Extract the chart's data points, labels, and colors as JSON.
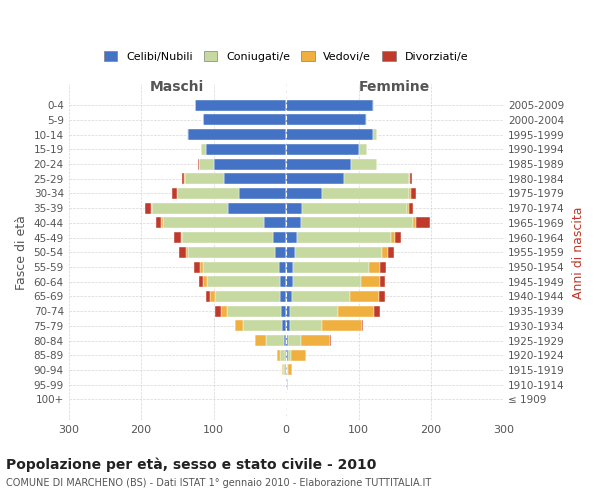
{
  "age_groups": [
    "100+",
    "95-99",
    "90-94",
    "85-89",
    "80-84",
    "75-79",
    "70-74",
    "65-69",
    "60-64",
    "55-59",
    "50-54",
    "45-49",
    "40-44",
    "35-39",
    "30-34",
    "25-29",
    "20-24",
    "15-19",
    "10-14",
    "5-9",
    "0-4"
  ],
  "birth_years": [
    "≤ 1909",
    "1910-1914",
    "1915-1919",
    "1920-1924",
    "1925-1929",
    "1930-1934",
    "1935-1939",
    "1940-1944",
    "1945-1949",
    "1950-1954",
    "1955-1959",
    "1960-1964",
    "1965-1969",
    "1970-1974",
    "1975-1979",
    "1980-1984",
    "1985-1989",
    "1990-1994",
    "1995-1999",
    "2000-2004",
    "2005-2009"
  ],
  "male": {
    "celibi": [
      0,
      0,
      1,
      1,
      3,
      5,
      7,
      8,
      9,
      10,
      15,
      18,
      30,
      80,
      65,
      85,
      100,
      110,
      135,
      115,
      125
    ],
    "coniugati": [
      0,
      0,
      3,
      8,
      25,
      55,
      75,
      90,
      100,
      105,
      120,
      125,
      140,
      105,
      85,
      55,
      20,
      8,
      2,
      0,
      0
    ],
    "vedovi": [
      0,
      0,
      1,
      4,
      15,
      10,
      8,
      7,
      5,
      4,
      3,
      2,
      2,
      2,
      1,
      1,
      0,
      0,
      0,
      0,
      0
    ],
    "divorziati": [
      0,
      0,
      0,
      0,
      0,
      1,
      8,
      5,
      6,
      8,
      10,
      9,
      8,
      8,
      6,
      2,
      1,
      0,
      0,
      0,
      0
    ]
  },
  "female": {
    "nubili": [
      0,
      1,
      1,
      2,
      3,
      5,
      6,
      8,
      9,
      10,
      12,
      15,
      20,
      22,
      50,
      80,
      90,
      100,
      120,
      110,
      120
    ],
    "coniugate": [
      0,
      0,
      2,
      5,
      18,
      45,
      65,
      80,
      95,
      105,
      120,
      130,
      155,
      145,
      120,
      90,
      35,
      12,
      5,
      2,
      1
    ],
    "vedove": [
      0,
      1,
      5,
      20,
      40,
      55,
      50,
      40,
      25,
      15,
      8,
      5,
      4,
      3,
      2,
      1,
      0,
      0,
      0,
      0,
      0
    ],
    "divorziate": [
      0,
      0,
      0,
      0,
      1,
      1,
      8,
      8,
      8,
      8,
      9,
      8,
      20,
      5,
      8,
      3,
      1,
      0,
      0,
      0,
      0
    ]
  },
  "colors": {
    "celibi": "#4472C4",
    "coniugati": "#c5d9a0",
    "vedovi": "#f0b040",
    "divorziati": "#c0392b"
  },
  "title": "Popolazione per età, sesso e stato civile - 2010",
  "subtitle": "COMUNE DI MARCHENO (BS) - Dati ISTAT 1° gennaio 2010 - Elaborazione TUTTITALIA.IT",
  "ylabel_left": "Fasce di età",
  "ylabel_right": "Anni di nascita",
  "xlabel_left": "Maschi",
  "xlabel_right": "Femmine",
  "xlim": 300,
  "background_color": "#ffffff",
  "grid_color": "#cccccc",
  "legend_labels": [
    "Celibi/Nubili",
    "Coniugati/e",
    "Vedovi/e",
    "Divorziati/e"
  ]
}
